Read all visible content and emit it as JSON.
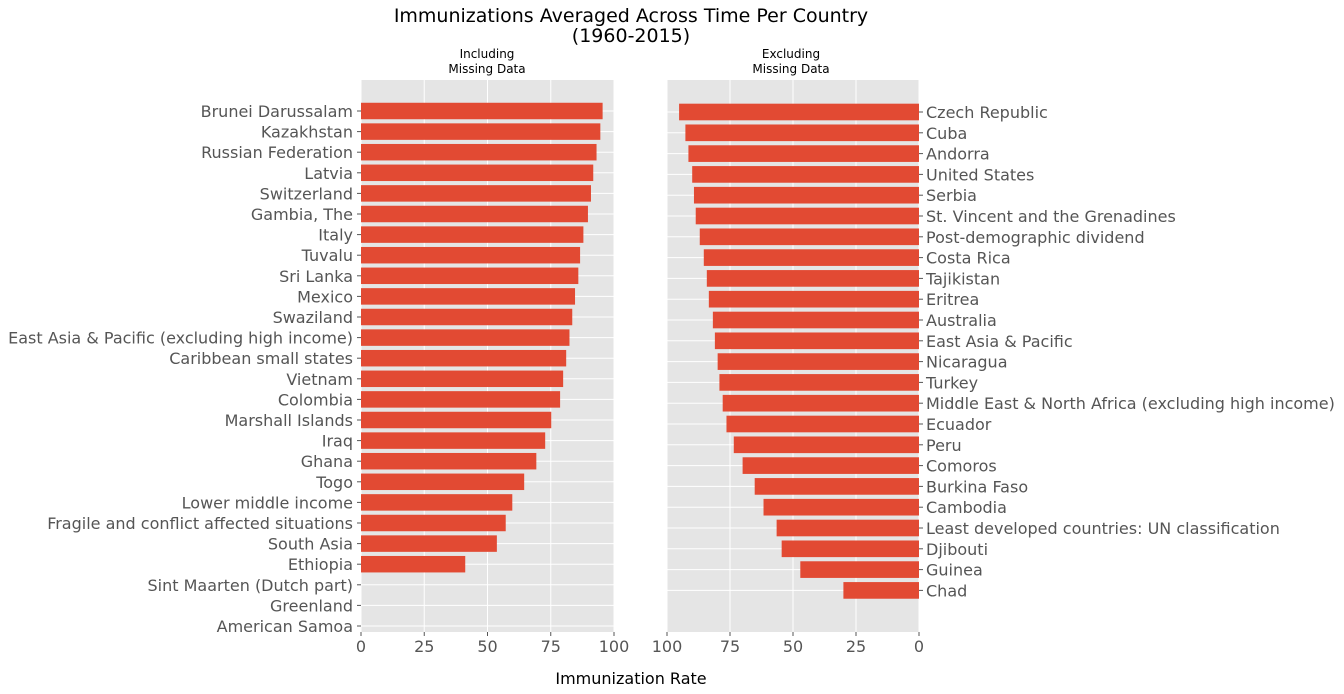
{
  "figure": {
    "title_line1": "Immunizations Averaged Across Time Per Country",
    "title_line2": "(1960-2015)",
    "xlabel": "Immunization Rate"
  },
  "colors": {
    "bar": "#E24A33",
    "panel_bg": "#E5E5E5",
    "grid": "#FFFFFF",
    "tick_text": "#555555"
  },
  "chart_data": [
    {
      "type": "bar",
      "orientation": "horizontal",
      "subtitle_line1": "Including",
      "subtitle_line2": "Missing Data",
      "xlim": [
        0,
        100
      ],
      "x_ticks": [
        0,
        25,
        50,
        75,
        100
      ],
      "grid": true,
      "categories": [
        "Brunei Darussalam",
        "Kazakhstan",
        "Russian Federation",
        "Latvia",
        "Switzerland",
        "Gambia, The",
        "Italy",
        "Tuvalu",
        "Sri Lanka",
        "Mexico",
        "Swaziland",
        "East Asia & Pacific (excluding high income)",
        "Caribbean small states",
        "Vietnam",
        "Colombia",
        "Marshall Islands",
        "Iraq",
        "Ghana",
        "Togo",
        "Lower middle income",
        "Fragile and conflict affected situations",
        "South Asia",
        "Ethiopia",
        "Sint Maarten (Dutch part)",
        "Greenland",
        "American Samoa"
      ],
      "values": [
        95.5,
        94.6,
        93.1,
        91.8,
        90.9,
        89.7,
        87.9,
        86.6,
        85.9,
        84.6,
        83.5,
        82.4,
        81.1,
        79.9,
        78.7,
        75.2,
        72.8,
        69.3,
        64.5,
        59.8,
        57.2,
        53.7,
        41.2,
        0,
        0,
        0
      ]
    },
    {
      "type": "bar",
      "orientation": "horizontal",
      "subtitle_line1": "Excluding",
      "subtitle_line2": "Missing Data",
      "xlim": [
        100,
        0
      ],
      "x_ticks": [
        100,
        75,
        50,
        25,
        0
      ],
      "grid": true,
      "categories": [
        "Czech Republic",
        "Cuba",
        "Andorra",
        "United States",
        "Serbia",
        "St. Vincent and the Grenadines",
        "Post-demographic dividend",
        "Costa Rica",
        "Tajikistan",
        "Eritrea",
        "Australia",
        "East Asia & Pacific",
        "Nicaragua",
        "Turkey",
        "Middle East & North Africa (excluding high income)",
        "Ecuador",
        "Peru",
        "Comoros",
        "Burkina Faso",
        "Cambodia",
        "Least developed countries: UN classification",
        "Djibouti",
        "Guinea",
        "Chad"
      ],
      "values": [
        95.2,
        92.7,
        91.5,
        90.0,
        89.3,
        88.6,
        87.0,
        85.4,
        84.2,
        83.4,
        81.8,
        81.0,
        79.9,
        79.2,
        77.9,
        76.4,
        73.5,
        70.0,
        65.2,
        61.7,
        56.5,
        54.5,
        47.1,
        30.0
      ]
    }
  ]
}
